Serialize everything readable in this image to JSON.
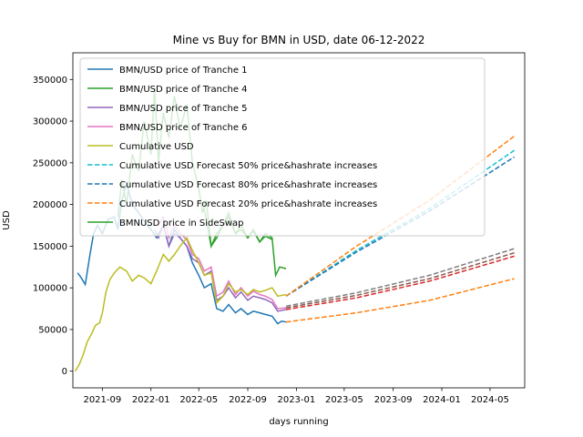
{
  "chart_data": {
    "type": "line",
    "title": "Mine vs Buy for BMN in USD, date 06-12-2022",
    "xlabel": "days running",
    "ylabel": "USD",
    "x_axis": "date",
    "xlim": [
      "2021-06-19",
      "2024-07-27"
    ],
    "ylim": [
      -20000,
      382000
    ],
    "x_ticks": [
      {
        "date": "2021-09-01",
        "label": "2021-09"
      },
      {
        "date": "2022-01-01",
        "label": "2022-01"
      },
      {
        "date": "2022-05-01",
        "label": "2022-05"
      },
      {
        "date": "2022-09-01",
        "label": "2022-09"
      },
      {
        "date": "2023-01-01",
        "label": "2023-01"
      },
      {
        "date": "2023-05-01",
        "label": "2023-05"
      },
      {
        "date": "2023-09-01",
        "label": "2023-09"
      },
      {
        "date": "2024-01-01",
        "label": "2024-01"
      },
      {
        "date": "2024-05-01",
        "label": "2024-05"
      }
    ],
    "y_ticks": [
      {
        "value": 0,
        "label": "0"
      },
      {
        "value": 50000,
        "label": "50000"
      },
      {
        "value": 100000,
        "label": "100000"
      },
      {
        "value": 150000,
        "label": "150000"
      },
      {
        "value": 200000,
        "label": "200000"
      },
      {
        "value": 250000,
        "label": "250000"
      },
      {
        "value": 300000,
        "label": "300000"
      },
      {
        "value": 350000,
        "label": "350000"
      }
    ],
    "grid": false,
    "legend_position": "upper-left",
    "series": [
      {
        "name": "BMNUSD price in SideSwap",
        "color": "#2ca02c",
        "style": "solid",
        "in_legend": true,
        "points": [
          [
            "2021-10-10",
            185000
          ],
          [
            "2021-10-20",
            230000
          ],
          [
            "2021-11-01",
            200000
          ],
          [
            "2021-11-15",
            260000
          ],
          [
            "2021-12-01",
            240000
          ],
          [
            "2021-12-15",
            300000
          ],
          [
            "2022-01-01",
            260000
          ],
          [
            "2022-01-10",
            340000
          ],
          [
            "2022-01-20",
            250000
          ],
          [
            "2022-02-01",
            310000
          ],
          [
            "2022-02-15",
            280000
          ],
          [
            "2022-03-01",
            330000
          ],
          [
            "2022-03-15",
            290000
          ],
          [
            "2022-04-01",
            320000
          ],
          [
            "2022-04-15",
            250000
          ],
          [
            "2022-05-01",
            220000
          ],
          [
            "2022-05-10",
            190000
          ],
          [
            "2022-05-20",
            205000
          ],
          [
            "2022-06-01",
            150000
          ],
          [
            "2022-06-15",
            165000
          ],
          [
            "2022-07-01",
            175000
          ],
          [
            "2022-07-15",
            190000
          ],
          [
            "2022-08-01",
            165000
          ],
          [
            "2022-08-15",
            175000
          ],
          [
            "2022-09-01",
            160000
          ],
          [
            "2022-09-15",
            170000
          ],
          [
            "2022-10-01",
            155000
          ],
          [
            "2022-10-15",
            165000
          ],
          [
            "2022-11-01",
            160000
          ],
          [
            "2022-11-10",
            115000
          ],
          [
            "2022-11-20",
            125000
          ],
          [
            "2022-12-06",
            123000
          ]
        ]
      },
      {
        "name": "BMN/USD price of Tranche 4",
        "color": "#2ca02c",
        "style": "solid",
        "in_legend": true,
        "points": [
          [
            "2022-05-15",
            195000
          ],
          [
            "2022-06-01",
            150000
          ],
          [
            "2022-06-15",
            160000
          ],
          [
            "2022-07-01",
            175000
          ],
          [
            "2022-07-15",
            185000
          ],
          [
            "2022-08-01",
            165000
          ],
          [
            "2022-08-15",
            170000
          ],
          [
            "2022-09-01",
            160000
          ],
          [
            "2022-09-15",
            168000
          ],
          [
            "2022-10-01",
            155000
          ],
          [
            "2022-10-15",
            162000
          ],
          [
            "2022-11-01",
            158000
          ]
        ]
      },
      {
        "name": "BMN/USD price of Tranche 1",
        "color": "#1f77b4",
        "style": "solid",
        "in_legend": true,
        "points": [
          [
            "2021-07-01",
            118000
          ],
          [
            "2021-07-10",
            112000
          ],
          [
            "2021-07-20",
            104000
          ],
          [
            "2021-08-01",
            140000
          ],
          [
            "2021-08-10",
            165000
          ],
          [
            "2021-08-20",
            175000
          ],
          [
            "2021-09-01",
            165000
          ],
          [
            "2021-09-15",
            182000
          ],
          [
            "2021-10-01",
            185000
          ],
          [
            "2021-10-10",
            170000
          ],
          [
            "2021-10-20",
            205000
          ],
          [
            "2021-11-01",
            225000
          ],
          [
            "2021-11-15",
            200000
          ],
          [
            "2021-12-01",
            190000
          ],
          [
            "2021-12-15",
            180000
          ],
          [
            "2022-01-01",
            170000
          ],
          [
            "2022-01-15",
            160000
          ],
          [
            "2022-02-01",
            175000
          ],
          [
            "2022-02-15",
            150000
          ],
          [
            "2022-03-01",
            170000
          ],
          [
            "2022-03-15",
            160000
          ],
          [
            "2022-04-01",
            150000
          ],
          [
            "2022-04-15",
            130000
          ],
          [
            "2022-05-01",
            115000
          ],
          [
            "2022-05-15",
            100000
          ],
          [
            "2022-06-01",
            105000
          ],
          [
            "2022-06-15",
            75000
          ],
          [
            "2022-07-01",
            72000
          ],
          [
            "2022-07-15",
            80000
          ],
          [
            "2022-08-01",
            70000
          ],
          [
            "2022-08-15",
            75000
          ],
          [
            "2022-09-01",
            68000
          ],
          [
            "2022-09-15",
            72000
          ],
          [
            "2022-10-01",
            70000
          ],
          [
            "2022-10-15",
            68000
          ],
          [
            "2022-11-01",
            66000
          ],
          [
            "2022-11-15",
            57000
          ],
          [
            "2022-11-25",
            60000
          ],
          [
            "2022-12-06",
            59000
          ]
        ]
      },
      {
        "name": "BMN/USD price of Tranche 5",
        "color": "#9467bd",
        "style": "solid",
        "in_legend": true,
        "points": [
          [
            "2022-01-10",
            170000
          ],
          [
            "2022-01-20",
            160000
          ],
          [
            "2022-02-01",
            175000
          ],
          [
            "2022-02-15",
            150000
          ],
          [
            "2022-03-01",
            165000
          ],
          [
            "2022-03-15",
            160000
          ],
          [
            "2022-04-01",
            150000
          ],
          [
            "2022-04-15",
            135000
          ],
          [
            "2022-05-01",
            130000
          ],
          [
            "2022-05-15",
            115000
          ],
          [
            "2022-06-01",
            120000
          ],
          [
            "2022-06-15",
            85000
          ],
          [
            "2022-07-01",
            90000
          ],
          [
            "2022-07-15",
            100000
          ],
          [
            "2022-08-01",
            88000
          ],
          [
            "2022-08-15",
            95000
          ],
          [
            "2022-09-01",
            85000
          ],
          [
            "2022-09-15",
            90000
          ],
          [
            "2022-10-01",
            88000
          ],
          [
            "2022-10-15",
            86000
          ],
          [
            "2022-11-01",
            82000
          ],
          [
            "2022-11-15",
            72000
          ],
          [
            "2022-12-06",
            74000
          ]
        ]
      },
      {
        "name": "BMN/USD price of Tranche 6",
        "color": "#e377c2",
        "style": "solid",
        "in_legend": true,
        "points": [
          [
            "2022-01-20",
            175000
          ],
          [
            "2022-02-01",
            185000
          ],
          [
            "2022-02-15",
            160000
          ],
          [
            "2022-03-01",
            175000
          ],
          [
            "2022-03-15",
            165000
          ],
          [
            "2022-04-01",
            158000
          ],
          [
            "2022-04-15",
            140000
          ],
          [
            "2022-05-01",
            135000
          ],
          [
            "2022-05-15",
            120000
          ],
          [
            "2022-06-01",
            125000
          ],
          [
            "2022-06-15",
            90000
          ],
          [
            "2022-07-01",
            95000
          ],
          [
            "2022-07-15",
            108000
          ],
          [
            "2022-08-01",
            92000
          ],
          [
            "2022-08-15",
            100000
          ],
          [
            "2022-09-01",
            90000
          ],
          [
            "2022-09-15",
            96000
          ],
          [
            "2022-10-01",
            92000
          ],
          [
            "2022-10-15",
            90000
          ],
          [
            "2022-11-01",
            86000
          ],
          [
            "2022-11-15",
            75000
          ],
          [
            "2022-12-06",
            76000
          ]
        ]
      },
      {
        "name": "Cumulative USD",
        "color": "#bcbd22",
        "style": "solid",
        "in_legend": true,
        "points": [
          [
            "2021-06-25",
            0
          ],
          [
            "2021-07-05",
            8000
          ],
          [
            "2021-07-15",
            20000
          ],
          [
            "2021-07-25",
            35000
          ],
          [
            "2021-08-05",
            45000
          ],
          [
            "2021-08-15",
            55000
          ],
          [
            "2021-08-25",
            58000
          ],
          [
            "2021-09-01",
            70000
          ],
          [
            "2021-09-10",
            95000
          ],
          [
            "2021-09-20",
            110000
          ],
          [
            "2021-10-01",
            118000
          ],
          [
            "2021-10-15",
            125000
          ],
          [
            "2021-11-01",
            120000
          ],
          [
            "2021-11-15",
            108000
          ],
          [
            "2021-12-01",
            115000
          ],
          [
            "2021-12-15",
            112000
          ],
          [
            "2022-01-01",
            105000
          ],
          [
            "2022-01-15",
            120000
          ],
          [
            "2022-02-01",
            140000
          ],
          [
            "2022-02-15",
            132000
          ],
          [
            "2022-03-01",
            140000
          ],
          [
            "2022-03-15",
            150000
          ],
          [
            "2022-04-01",
            160000
          ],
          [
            "2022-04-15",
            145000
          ],
          [
            "2022-05-01",
            130000
          ],
          [
            "2022-05-15",
            115000
          ],
          [
            "2022-06-01",
            118000
          ],
          [
            "2022-06-15",
            82000
          ],
          [
            "2022-07-01",
            90000
          ],
          [
            "2022-07-15",
            105000
          ],
          [
            "2022-08-01",
            95000
          ],
          [
            "2022-08-15",
            98000
          ],
          [
            "2022-09-01",
            92000
          ],
          [
            "2022-09-15",
            98000
          ],
          [
            "2022-10-01",
            95000
          ],
          [
            "2022-10-15",
            97000
          ],
          [
            "2022-11-01",
            100000
          ],
          [
            "2022-11-15",
            90000
          ],
          [
            "2022-12-06",
            92000
          ]
        ]
      },
      {
        "name": "Cumulative USD Forecast 50% price&hashrate increases",
        "color": "#17becf",
        "style": "dashed",
        "in_legend": true,
        "points": [
          [
            "2022-12-06",
            90000
          ],
          [
            "2023-06-01",
            145000
          ],
          [
            "2023-12-01",
            195000
          ],
          [
            "2024-07-01",
            265000
          ]
        ]
      },
      {
        "name": "Cumulative USD Forecast 80% price&hashrate increases",
        "color": "#1f77b4",
        "style": "dashed",
        "in_legend": true,
        "points": [
          [
            "2022-12-06",
            90000
          ],
          [
            "2023-06-01",
            143000
          ],
          [
            "2023-12-01",
            192000
          ],
          [
            "2024-07-01",
            257000
          ]
        ]
      },
      {
        "name": "Cumulative USD Forecast 20% price&hashrate increases",
        "color": "#ff7f0e",
        "style": "dashed",
        "in_legend": true,
        "points": [
          [
            "2022-12-06",
            90000
          ],
          [
            "2023-06-01",
            150000
          ],
          [
            "2023-12-01",
            205000
          ],
          [
            "2024-07-01",
            282000
          ]
        ]
      },
      {
        "name": "",
        "color": "#7f7f7f",
        "style": "dashed",
        "in_legend": false,
        "points": [
          [
            "2022-12-06",
            78000
          ],
          [
            "2023-06-01",
            94000
          ],
          [
            "2023-12-01",
            115000
          ],
          [
            "2024-07-01",
            147000
          ]
        ]
      },
      {
        "name": "",
        "color": "#8c564b",
        "style": "dashed",
        "in_legend": false,
        "points": [
          [
            "2022-12-06",
            76000
          ],
          [
            "2023-06-01",
            91000
          ],
          [
            "2023-12-01",
            111000
          ],
          [
            "2024-07-01",
            142000
          ]
        ]
      },
      {
        "name": "",
        "color": "#d62728",
        "style": "dashed",
        "in_legend": false,
        "points": [
          [
            "2022-12-06",
            74000
          ],
          [
            "2023-06-01",
            88000
          ],
          [
            "2023-12-01",
            108000
          ],
          [
            "2024-07-01",
            138000
          ]
        ]
      },
      {
        "name": "",
        "color": "#ff7f0e",
        "style": "dashed",
        "in_legend": false,
        "points": [
          [
            "2022-12-06",
            59000
          ],
          [
            "2023-06-01",
            70000
          ],
          [
            "2023-12-01",
            85000
          ],
          [
            "2024-07-01",
            111000
          ]
        ]
      }
    ],
    "legend_order": [
      "BMN/USD price of Tranche 1",
      "BMN/USD price of Tranche 4",
      "BMN/USD price of Tranche 5",
      "BMN/USD price of Tranche 6",
      "Cumulative USD",
      "Cumulative USD Forecast 50% price&hashrate increases",
      "Cumulative USD Forecast 80% price&hashrate increases",
      "Cumulative USD Forecast 20% price&hashrate increases",
      "BMNUSD price in SideSwap"
    ]
  }
}
